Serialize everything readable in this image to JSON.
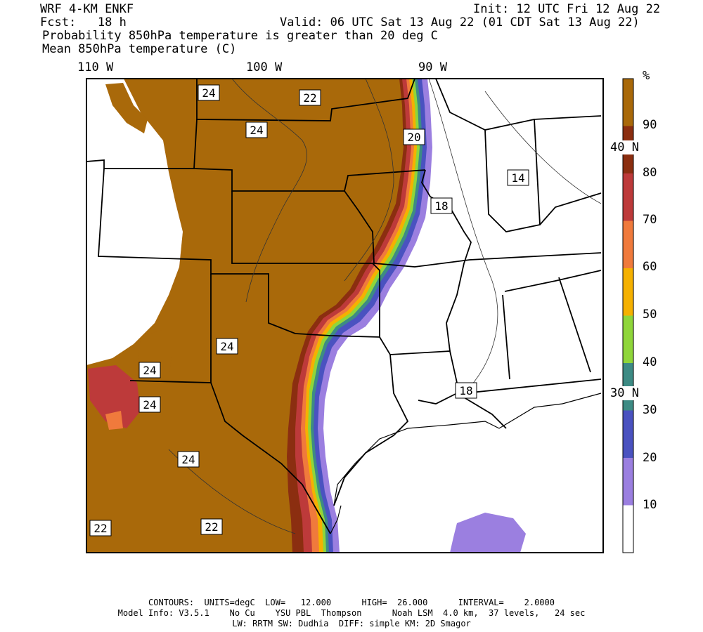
{
  "header": {
    "model": "WRF 4-KM ENKF",
    "fcst": "Fcst:   18 h",
    "init": "Init: 12 UTC Fri 12 Aug 22",
    "valid": "Valid: 06 UTC Sat 13 Aug 22 (01 CDT Sat 13 Aug 22)",
    "line3": "Probability 850hPa temperature is greater than 20 deg C",
    "line4": "Mean 850hPa temperature (C)"
  },
  "longitudes": [
    "110 W",
    "100 W",
    "90 W"
  ],
  "latitudes": [
    "40 N",
    "30 N"
  ],
  "contour_labels": [
    "24",
    "22",
    "24",
    "20",
    "14",
    "18",
    "24",
    "24",
    "24",
    "24",
    "18",
    "22",
    "22"
  ],
  "colorbar": {
    "unit": "%",
    "ticks": [
      "90",
      "80",
      "70",
      "60",
      "50",
      "40",
      "30",
      "20",
      "10"
    ],
    "colors": [
      "#a9690a",
      "#8b2e10",
      "#bd3a3a",
      "#f07a3c",
      "#f5b100",
      "#8fd63a",
      "#3d8b84",
      "#4a52c0",
      "#9b7fe0",
      "#ffffff"
    ]
  },
  "footer": {
    "line1": "CONTOURS:  UNITS=degC  LOW=   12.000      HIGH=  26.000      INTERVAL=    2.0000",
    "line2": "Model Info: V3.5.1    No Cu    YSU PBL  Thompson      Noah LSM  4.0 km,  37 levels,   24 sec",
    "line3": "LW: RRTM SW: Dudhia  DIFF: simple KM: 2D Smagor"
  }
}
